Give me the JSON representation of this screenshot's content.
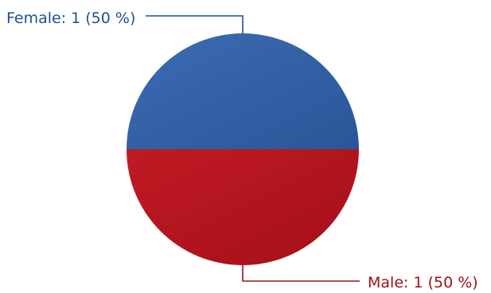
{
  "chart_data": {
    "type": "pie",
    "slices": [
      {
        "label": "Female",
        "value": 1,
        "percent": 50,
        "label_text": "Female: 1 (50 %)",
        "color": "#2f5da2",
        "label_color": "#1f4f94"
      },
      {
        "label": "Male",
        "value": 1,
        "percent": 50,
        "label_text": "Male: 1 (50 %)",
        "color": "#b3121b",
        "label_color": "#a01018"
      }
    ]
  }
}
